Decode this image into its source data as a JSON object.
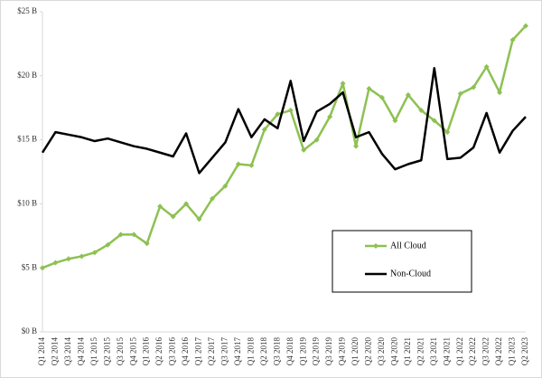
{
  "chart_data": {
    "type": "line",
    "categories": [
      "Q1 2014",
      "Q2 2014",
      "Q3 2014",
      "Q4 2014",
      "Q1 2015",
      "Q2 2015",
      "Q3 2015",
      "Q4 2015",
      "Q1 2016",
      "Q2 2016",
      "Q3 2016",
      "Q4 2016",
      "Q1 2017",
      "Q2 2017",
      "Q3 2017",
      "Q4 2017",
      "Q1 2018",
      "Q2 2018",
      "Q3 2018",
      "Q4 2018",
      "Q1 2019",
      "Q2 2019",
      "Q3 2019",
      "Q4 2019",
      "Q1 2020",
      "Q2 2020",
      "Q3 2020",
      "Q4 2020",
      "Q1 2021",
      "Q2 2021",
      "Q3 2021",
      "Q4 2021",
      "Q1 2022",
      "Q2 2022",
      "Q3 2022",
      "Q4 2022",
      "Q1 2023",
      "Q2 2023"
    ],
    "series": [
      {
        "name": "All Cloud",
        "color": "#8dc152",
        "marker": true,
        "values": [
          5.0,
          5.4,
          5.7,
          5.9,
          6.2,
          6.8,
          7.6,
          7.6,
          6.9,
          9.8,
          9.0,
          10.0,
          8.8,
          10.4,
          11.4,
          13.1,
          13.0,
          15.8,
          17.0,
          17.3,
          14.2,
          15.0,
          16.8,
          19.4,
          14.5,
          19.0,
          18.3,
          16.5,
          18.5,
          17.3,
          16.5,
          15.6,
          18.6,
          19.1,
          20.7,
          18.7,
          22.8,
          23.9
        ]
      },
      {
        "name": "Non-Cloud",
        "color": "#000000",
        "marker": false,
        "values": [
          14.0,
          15.6,
          15.4,
          15.2,
          14.9,
          15.1,
          14.8,
          14.5,
          14.3,
          14.0,
          13.7,
          15.5,
          12.4,
          13.6,
          14.8,
          17.4,
          15.2,
          16.6,
          15.9,
          19.6,
          14.9,
          17.2,
          17.8,
          18.7,
          15.2,
          15.6,
          13.9,
          12.7,
          13.1,
          13.4,
          20.6,
          13.5,
          13.6,
          14.4,
          17.1,
          14.0,
          15.7,
          16.8
        ]
      }
    ],
    "ylim": [
      0,
      25
    ],
    "yticks": [
      {
        "value": 0,
        "label": "$0 B"
      },
      {
        "value": 5,
        "label": "$5 B"
      },
      {
        "value": 10,
        "label": "$10 B"
      },
      {
        "value": 15,
        "label": "$15 B"
      },
      {
        "value": 20,
        "label": "$20 B"
      },
      {
        "value": 25,
        "label": "$25 B"
      }
    ],
    "grid": false
  }
}
